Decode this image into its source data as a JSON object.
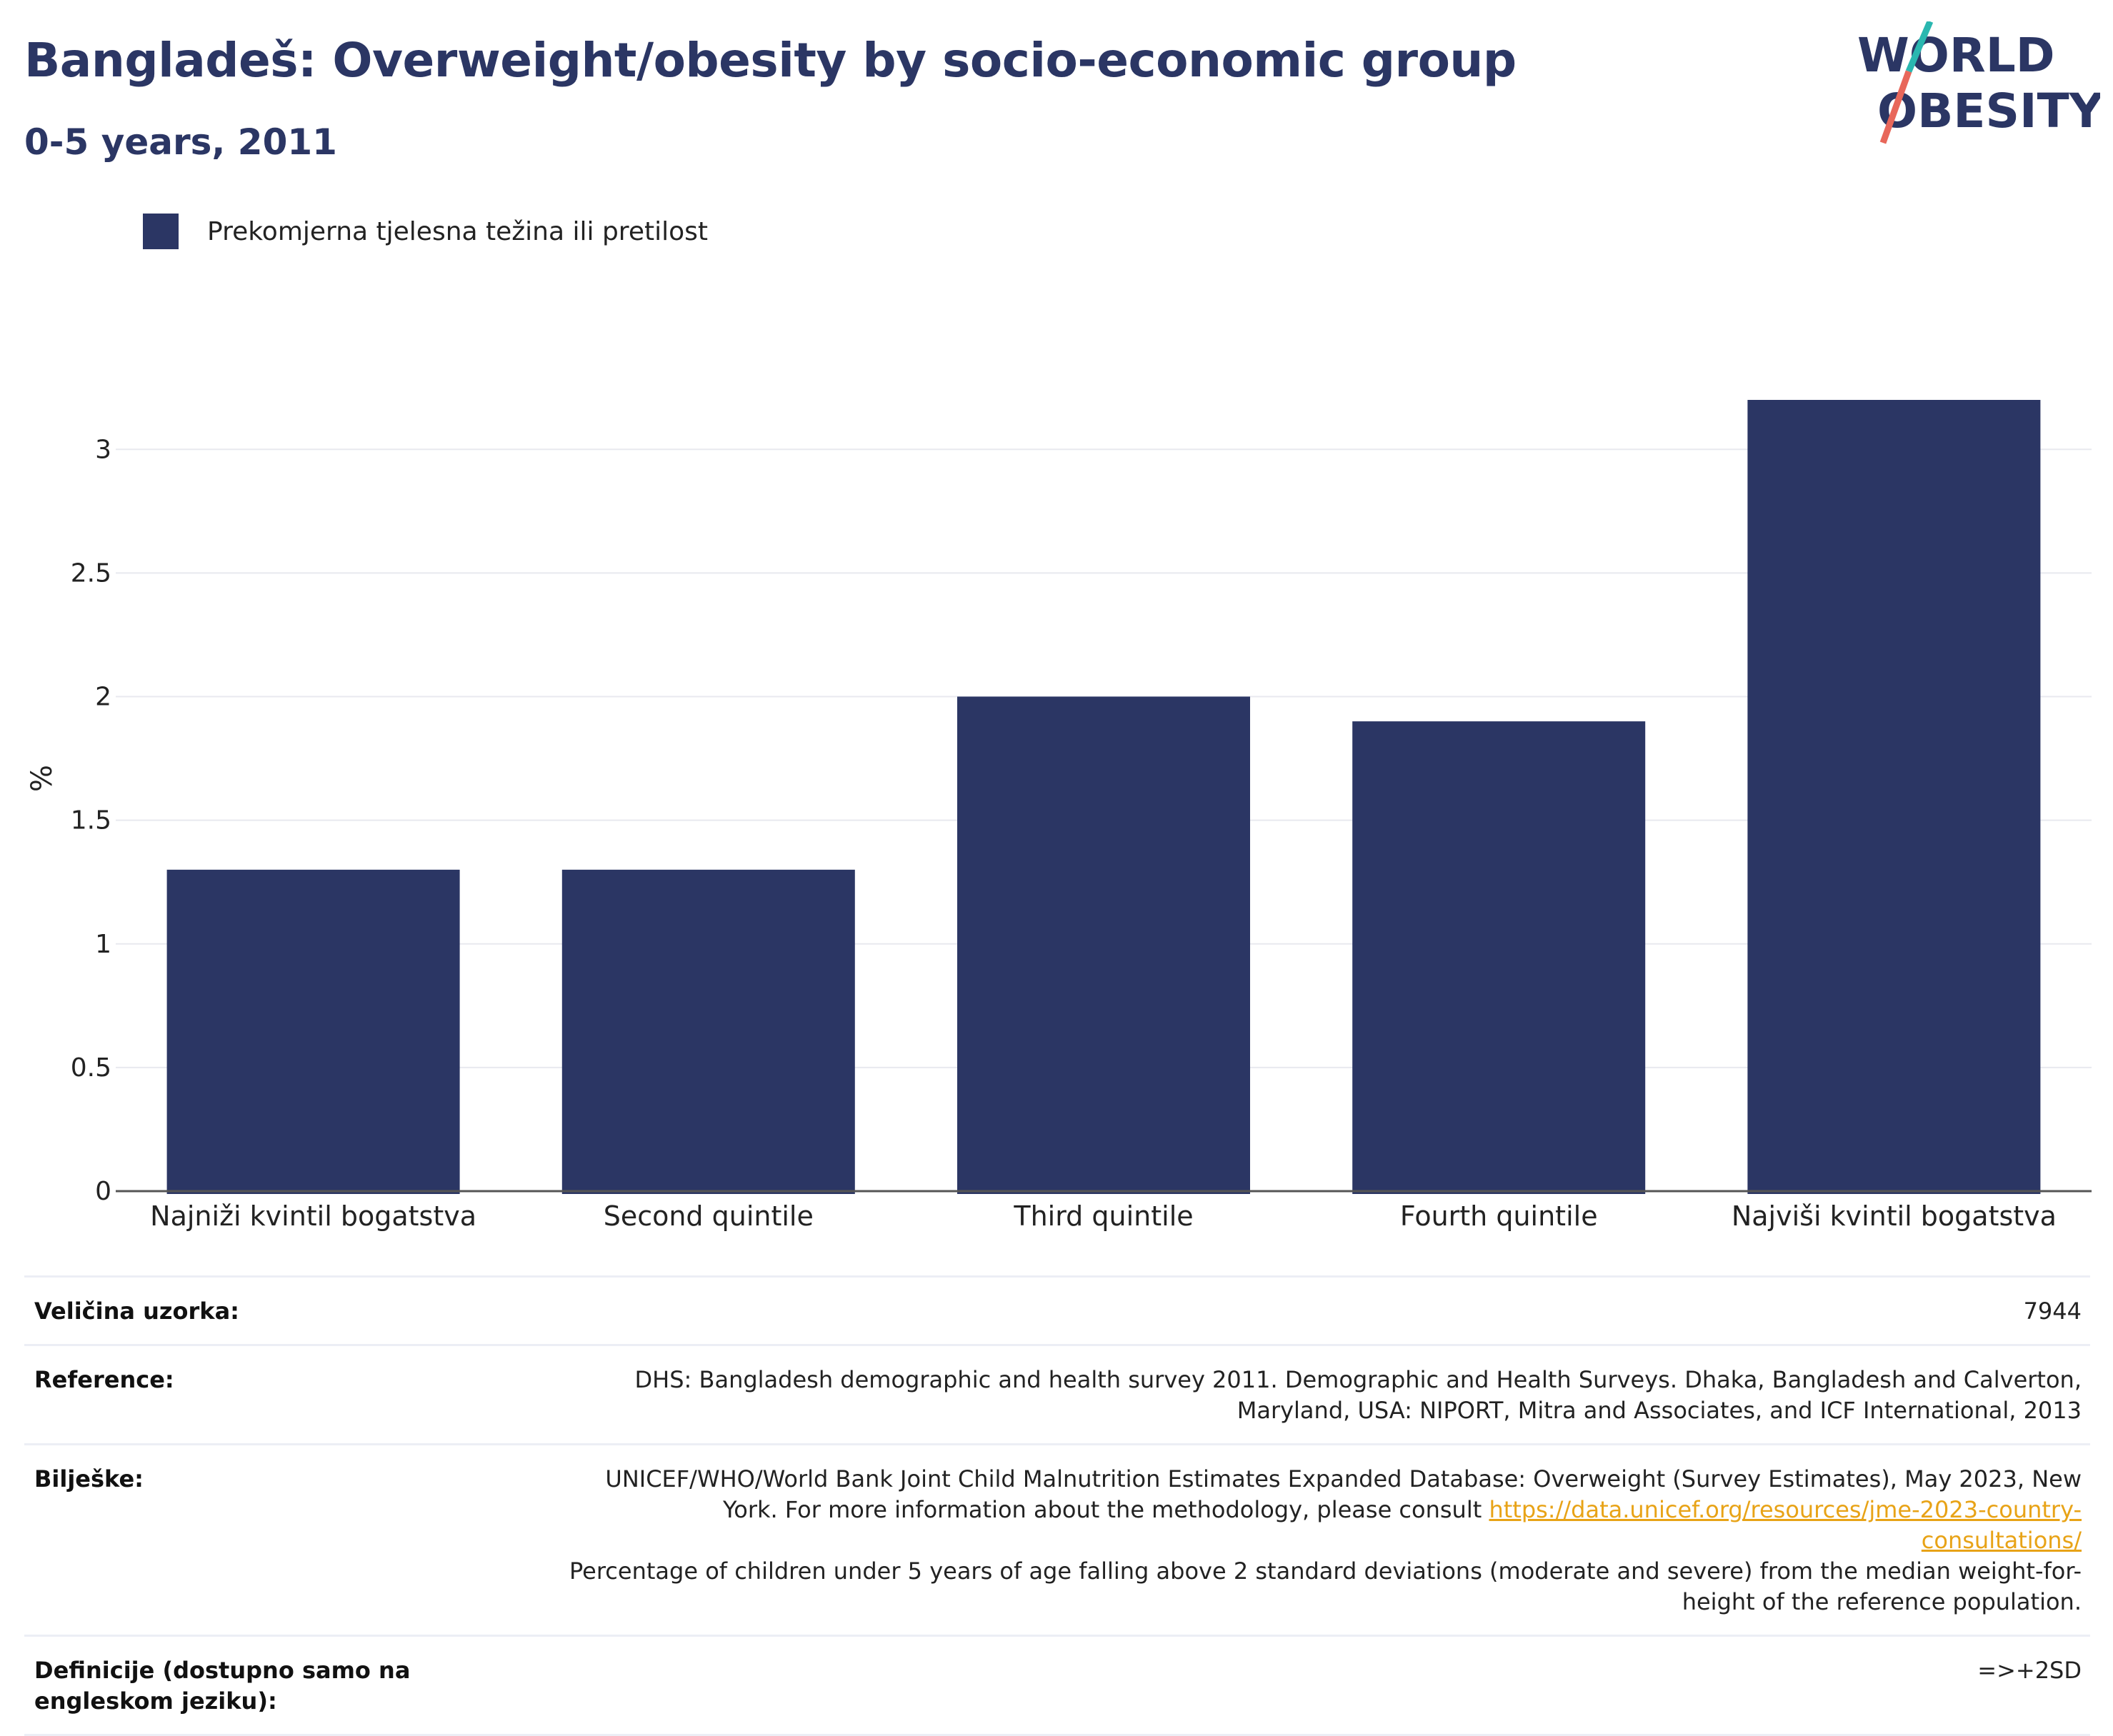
{
  "header": {
    "title": "Bangladeš: Overweight/obesity by socio-economic group",
    "subtitle": "0-5 years, 2011"
  },
  "logo": {
    "line1": "WORLD",
    "line2": "OBESITY",
    "colors": {
      "text": "#2b3664",
      "slash_top": "#2ab7b0",
      "slash_bottom": "#e8675a"
    }
  },
  "chart_data": {
    "type": "bar",
    "categories": [
      "Najniži kvintil bogatstva",
      "Second quintile",
      "Third quintile",
      "Fourth quintile",
      "Najviši kvintil bogatstva"
    ],
    "series": [
      {
        "name": "Prekomjerna tjelesna težina ili pretilost",
        "values": [
          1.3,
          1.3,
          2.0,
          1.9,
          3.2
        ],
        "color": "#2b3664"
      }
    ],
    "ylabel": "%",
    "ylim": [
      0,
      3.2
    ],
    "yticks": [
      0,
      0.5,
      1,
      1.5,
      2,
      2.5,
      3
    ],
    "ytick_labels": [
      "0",
      "0.5",
      "1",
      "1.5",
      "2",
      "2.5",
      "3"
    ],
    "grid": true,
    "legend_position": "top-left"
  },
  "meta": {
    "sample_size_label": "Veličina uzorka:",
    "sample_size_value": "7944",
    "reference_label": "Reference:",
    "reference_line1": "DHS: Bangladesh demographic and health survey 2011. Demographic and Health Surveys. Dhaka, Bangladesh and Calverton,",
    "reference_line2": "Maryland, USA: NIPORT, Mitra and Associates, and ICF International, 2013",
    "notes_label": "Bilješke:",
    "notes_line1": "UNICEF/WHO/World Bank Joint Child Malnutrition Estimates Expanded Database: Overweight (Survey Estimates), May 2023, New",
    "notes_line2_prefix": "York. For more information about the methodology, please consult ",
    "notes_link": "https://data.unicef.org/resources/jme-2023-country-consultations/",
    "notes_line3": "Percentage of children under 5 years of age falling above 2 standard deviations (moderate and severe) from the median weight-for-",
    "notes_line4": "height of the reference population.",
    "definitions_label": "Definicije (dostupno samo na engleskom jeziku):",
    "definitions_value": "=>+2SD"
  }
}
